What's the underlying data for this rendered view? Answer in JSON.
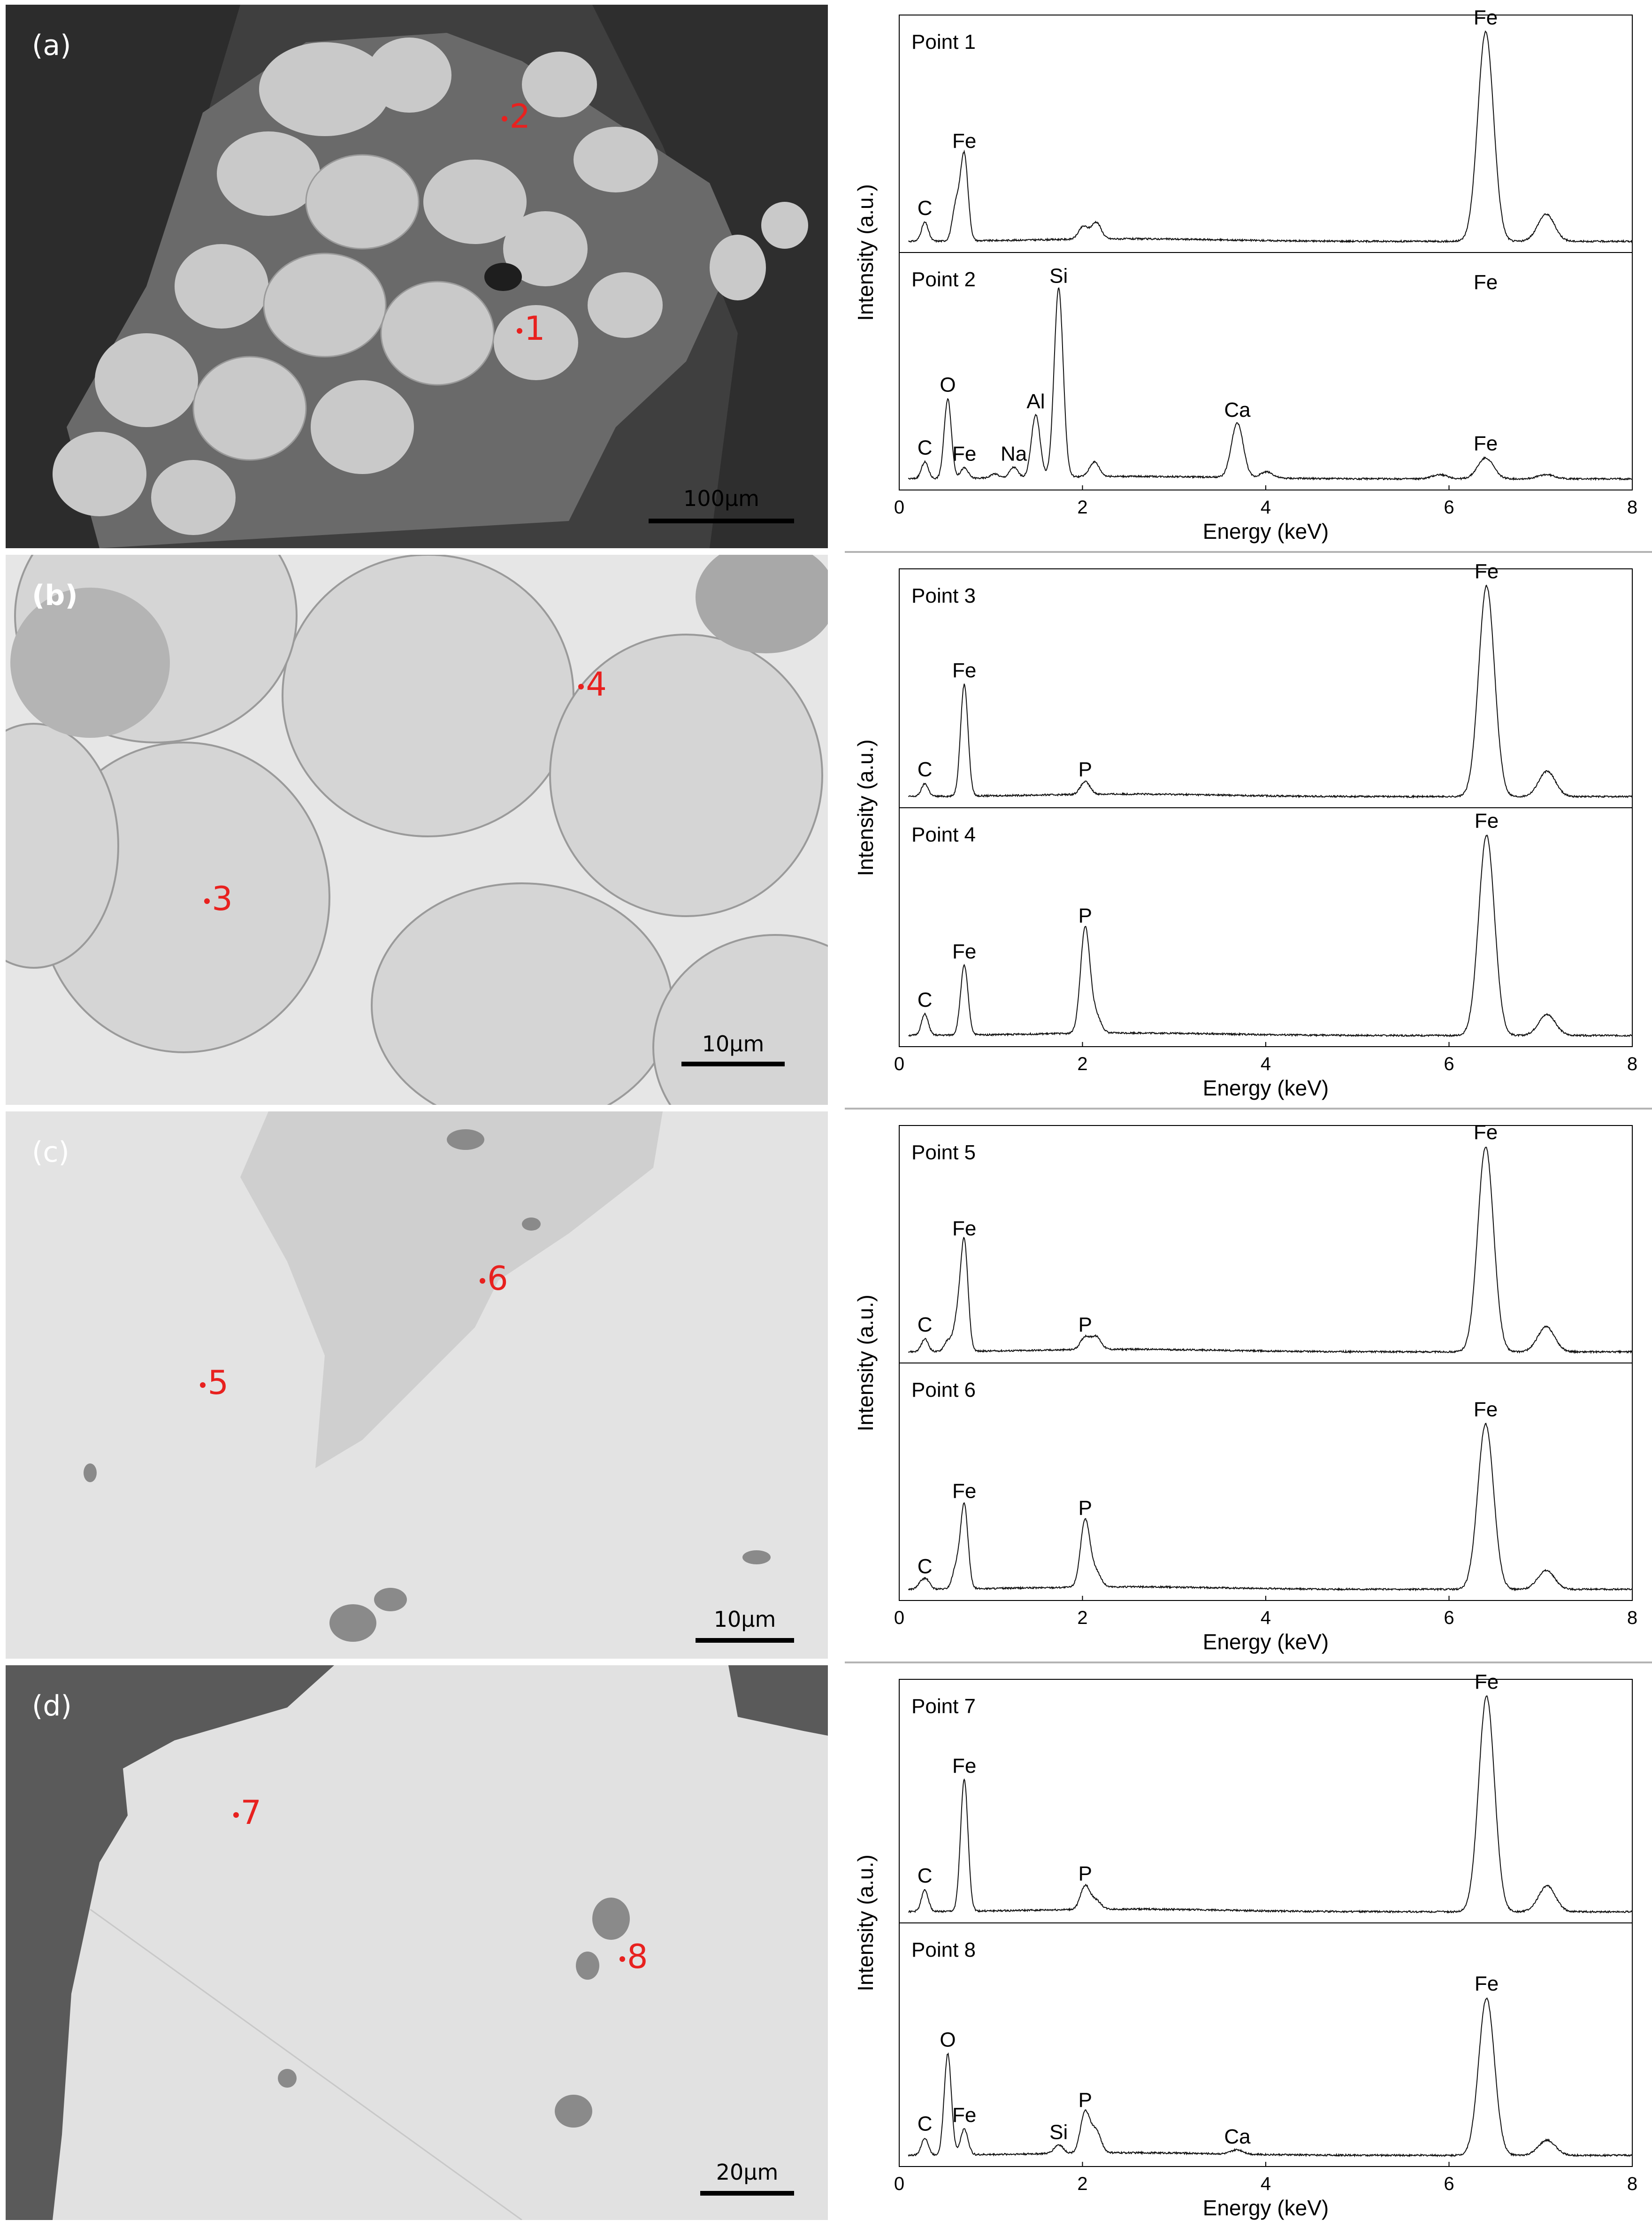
{
  "panels": [
    {
      "label": "(a)",
      "scale_bar": "100μm",
      "points": [
        {
          "label": "2",
          "x": 0.607,
          "y": 0.21
        },
        {
          "label": "1",
          "x": 0.625,
          "y": 0.6
        }
      ]
    },
    {
      "label": "(b)",
      "scale_bar": "10μm",
      "points": [
        {
          "label": "4",
          "x": 0.7,
          "y": 0.24
        },
        {
          "label": "3",
          "x": 0.245,
          "y": 0.63
        }
      ]
    },
    {
      "label": "(c)",
      "scale_bar": "10μm",
      "points": [
        {
          "label": "6",
          "x": 0.58,
          "y": 0.31
        },
        {
          "label": "5",
          "x": 0.24,
          "y": 0.5
        }
      ]
    },
    {
      "label": "(d)",
      "scale_bar": "20μm",
      "points": [
        {
          "label": "7",
          "x": 0.28,
          "y": 0.27
        },
        {
          "label": "8",
          "x": 0.75,
          "y": 0.53
        }
      ]
    }
  ],
  "chart_data": [
    {
      "type": "line",
      "group": "(a)",
      "xlabel": "Energy (keV)",
      "ylabel": "Intensity (a.u.)",
      "xlim": [
        0,
        8
      ],
      "xticks": [
        0,
        2,
        4,
        6,
        8
      ],
      "series": [
        {
          "name": "Point 1",
          "peaks": [
            {
              "x": 0.28,
              "h": 0.09
            },
            {
              "x": 0.62,
              "h": 0.17
            },
            {
              "x": 0.71,
              "h": 0.41
            },
            {
              "x": 2.01,
              "h": 0.06
            },
            {
              "x": 2.15,
              "h": 0.08
            },
            {
              "x": 6.4,
              "h": 1.0
            },
            {
              "x": 7.06,
              "h": 0.13
            }
          ],
          "labels": [
            {
              "text": "C",
              "x": 0.28,
              "h": 0.09
            },
            {
              "text": "Fe",
              "x": 0.71,
              "h": 0.41
            },
            {
              "text": "Fe",
              "x": 6.4,
              "h": 1.0
            }
          ]
        },
        {
          "name": "Point 2",
          "peaks": [
            {
              "x": 0.28,
              "h": 0.08
            },
            {
              "x": 0.53,
              "h": 0.38
            },
            {
              "x": 0.71,
              "h": 0.05
            },
            {
              "x": 1.04,
              "h": 0.02
            },
            {
              "x": 1.25,
              "h": 0.05
            },
            {
              "x": 1.49,
              "h": 0.3
            },
            {
              "x": 1.74,
              "h": 0.9
            },
            {
              "x": 2.13,
              "h": 0.07
            },
            {
              "x": 3.69,
              "h": 0.26
            },
            {
              "x": 4.01,
              "h": 0.03
            },
            {
              "x": 5.9,
              "h": 0.02
            },
            {
              "x": 6.4,
              "h": 0.1
            },
            {
              "x": 7.06,
              "h": 0.02
            }
          ],
          "labels": [
            {
              "text": "C",
              "x": 0.28,
              "h": 0.08
            },
            {
              "text": "O",
              "x": 0.53,
              "h": 0.38
            },
            {
              "text": "Fe",
              "x": 0.71,
              "h": 0.05
            },
            {
              "text": "Na",
              "x": 1.25,
              "h": 0.05
            },
            {
              "text": "Al",
              "x": 1.49,
              "h": 0.3
            },
            {
              "text": "Si",
              "x": 1.74,
              "h": 0.9
            },
            {
              "text": "Ca",
              "x": 3.69,
              "h": 0.26
            },
            {
              "text": "Fe",
              "x": 6.4,
              "h": 0.87
            },
            {
              "text": "Fe",
              "x": 6.4,
              "h": 0.1
            }
          ]
        }
      ]
    },
    {
      "type": "line",
      "group": "(b)",
      "xlabel": "Energy (keV)",
      "ylabel": "Intensity (a.u.)",
      "xlim": [
        0,
        8
      ],
      "xticks": [
        0,
        2,
        4,
        6,
        8
      ],
      "series": [
        {
          "name": "Point 3",
          "peaks": [
            {
              "x": 0.28,
              "h": 0.06
            },
            {
              "x": 0.71,
              "h": 0.53
            },
            {
              "x": 2.03,
              "h": 0.06
            },
            {
              "x": 6.41,
              "h": 1.0
            },
            {
              "x": 7.07,
              "h": 0.12
            }
          ],
          "labels": [
            {
              "text": "C",
              "x": 0.28,
              "h": 0.06
            },
            {
              "text": "Fe",
              "x": 0.71,
              "h": 0.53
            },
            {
              "text": "P",
              "x": 2.03,
              "h": 0.06
            },
            {
              "text": "Fe",
              "x": 6.41,
              "h": 1.0
            }
          ]
        },
        {
          "name": "Point 4",
          "peaks": [
            {
              "x": 0.28,
              "h": 0.1
            },
            {
              "x": 0.71,
              "h": 0.33
            },
            {
              "x": 2.03,
              "h": 0.5
            },
            {
              "x": 2.15,
              "h": 0.08
            },
            {
              "x": 6.41,
              "h": 0.95
            },
            {
              "x": 7.07,
              "h": 0.1
            }
          ],
          "labels": [
            {
              "text": "C",
              "x": 0.28,
              "h": 0.1
            },
            {
              "text": "Fe",
              "x": 0.71,
              "h": 0.33
            },
            {
              "text": "P",
              "x": 2.03,
              "h": 0.5
            },
            {
              "text": "Fe",
              "x": 6.41,
              "h": 0.95
            }
          ]
        }
      ]
    },
    {
      "type": "line",
      "group": "(c)",
      "xlabel": "Energy (keV)",
      "ylabel": "Intensity (a.u.)",
      "xlim": [
        0,
        8
      ],
      "xticks": [
        0,
        2,
        4,
        6,
        8
      ],
      "series": [
        {
          "name": "Point 5",
          "peaks": [
            {
              "x": 0.28,
              "h": 0.06
            },
            {
              "x": 0.53,
              "h": 0.05
            },
            {
              "x": 0.63,
              "h": 0.14
            },
            {
              "x": 0.71,
              "h": 0.52
            },
            {
              "x": 2.03,
              "h": 0.06
            },
            {
              "x": 2.15,
              "h": 0.06
            },
            {
              "x": 6.4,
              "h": 0.98
            },
            {
              "x": 7.06,
              "h": 0.12
            }
          ],
          "labels": [
            {
              "text": "C",
              "x": 0.28,
              "h": 0.06
            },
            {
              "text": "Fe",
              "x": 0.71,
              "h": 0.52
            },
            {
              "text": "P",
              "x": 2.03,
              "h": 0.06
            },
            {
              "text": "Fe",
              "x": 6.4,
              "h": 0.98
            }
          ]
        },
        {
          "name": "Point 6",
          "peaks": [
            {
              "x": 0.24,
              "h": 0.03
            },
            {
              "x": 0.3,
              "h": 0.04
            },
            {
              "x": 0.62,
              "h": 0.1
            },
            {
              "x": 0.71,
              "h": 0.4
            },
            {
              "x": 2.03,
              "h": 0.32
            },
            {
              "x": 2.15,
              "h": 0.07
            },
            {
              "x": 6.4,
              "h": 0.79
            },
            {
              "x": 7.06,
              "h": 0.09
            }
          ],
          "labels": [
            {
              "text": "C",
              "x": 0.28,
              "h": 0.04
            },
            {
              "text": "Fe",
              "x": 0.71,
              "h": 0.4
            },
            {
              "text": "P",
              "x": 2.03,
              "h": 0.32
            },
            {
              "text": "Fe",
              "x": 6.4,
              "h": 0.79
            }
          ]
        }
      ]
    },
    {
      "type": "line",
      "group": "(d)",
      "xlabel": "Energy (keV)",
      "ylabel": "Intensity (a.u.)",
      "xlim": [
        0,
        8
      ],
      "xticks": [
        0,
        2,
        4,
        6,
        8
      ],
      "series": [
        {
          "name": "Point 7",
          "peaks": [
            {
              "x": 0.28,
              "h": 0.1
            },
            {
              "x": 0.71,
              "h": 0.61
            },
            {
              "x": 2.03,
              "h": 0.11
            },
            {
              "x": 2.15,
              "h": 0.04
            },
            {
              "x": 6.41,
              "h": 1.0
            },
            {
              "x": 7.07,
              "h": 0.12
            }
          ],
          "labels": [
            {
              "text": "C",
              "x": 0.28,
              "h": 0.1
            },
            {
              "text": "Fe",
              "x": 0.71,
              "h": 0.61
            },
            {
              "text": "P",
              "x": 2.03,
              "h": 0.11
            },
            {
              "text": "Fe",
              "x": 6.41,
              "h": 1.0
            }
          ]
        },
        {
          "name": "Point 8",
          "peaks": [
            {
              "x": 0.28,
              "h": 0.08
            },
            {
              "x": 0.53,
              "h": 0.47
            },
            {
              "x": 0.71,
              "h": 0.12
            },
            {
              "x": 1.74,
              "h": 0.04
            },
            {
              "x": 2.03,
              "h": 0.19
            },
            {
              "x": 2.15,
              "h": 0.1
            },
            {
              "x": 3.69,
              "h": 0.02
            },
            {
              "x": 6.41,
              "h": 0.73
            },
            {
              "x": 7.07,
              "h": 0.07
            }
          ],
          "labels": [
            {
              "text": "C",
              "x": 0.28,
              "h": 0.08
            },
            {
              "text": "O",
              "x": 0.53,
              "h": 0.47
            },
            {
              "text": "Fe",
              "x": 0.71,
              "h": 0.12
            },
            {
              "text": "Si",
              "x": 1.74,
              "h": 0.04
            },
            {
              "text": "P",
              "x": 2.03,
              "h": 0.19
            },
            {
              "text": "Ca",
              "x": 3.69,
              "h": 0.02
            },
            {
              "text": "Fe",
              "x": 6.41,
              "h": 0.73
            }
          ]
        }
      ]
    }
  ]
}
